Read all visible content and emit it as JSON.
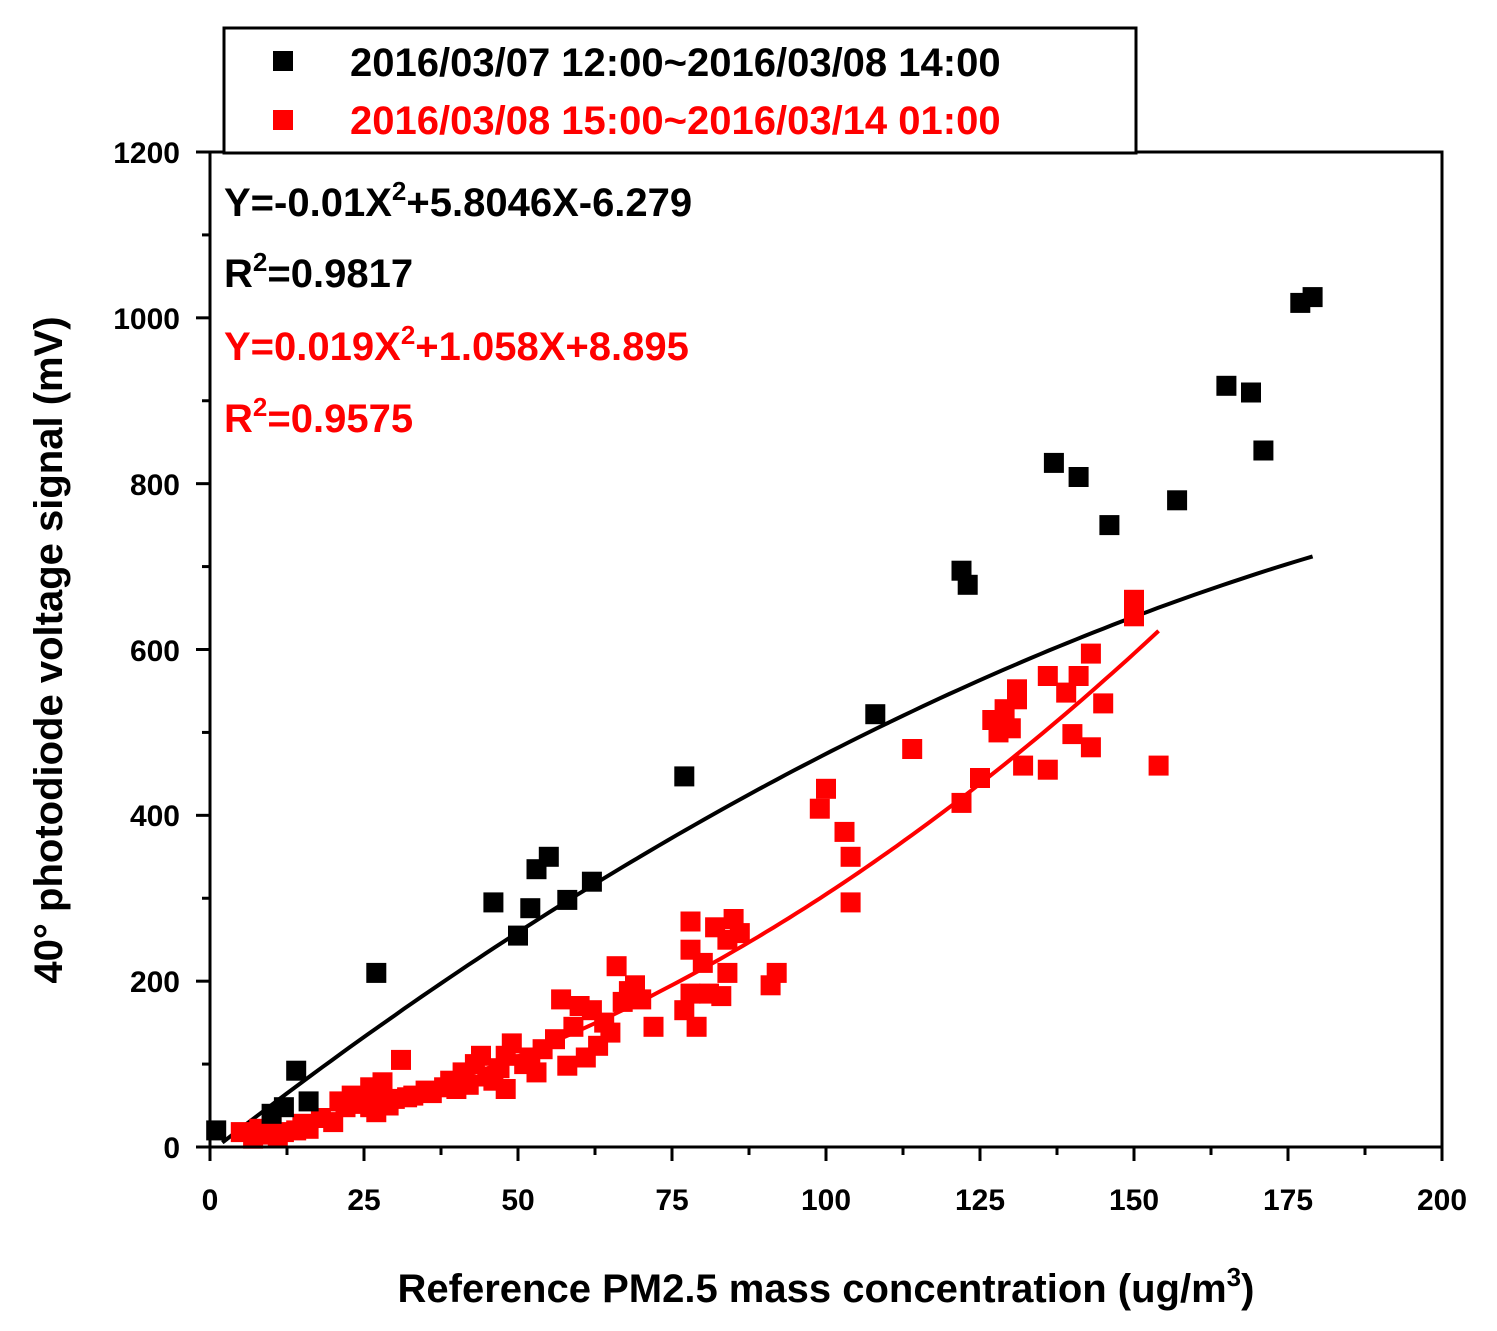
{
  "chart_data": {
    "type": "scatter",
    "xlabel": "Reference PM2.5 mass concentration (ug/m",
    "xlabel_sup": "3",
    "xlabel_end": ")",
    "ylabel": "40° photodiode voltage signal (mV)",
    "xlim": [
      0,
      200
    ],
    "ylim": [
      0,
      1200
    ],
    "xticks": [
      "0",
      "25",
      "50",
      "75",
      "100",
      "125",
      "150",
      "175",
      "200"
    ],
    "yticks": [
      "0",
      "200",
      "400",
      "600",
      "800",
      "1000",
      "1200"
    ],
    "legend_position": "top",
    "series": [
      {
        "name": "2016/03/07 12:00~2016/03/08 14:00",
        "color": "#000000",
        "marker": "square",
        "points": [
          [
            1,
            20
          ],
          [
            10,
            40
          ],
          [
            12,
            48
          ],
          [
            14,
            92
          ],
          [
            16,
            55
          ],
          [
            27,
            210
          ],
          [
            46,
            295
          ],
          [
            50,
            255
          ],
          [
            52,
            288
          ],
          [
            53,
            335
          ],
          [
            55,
            350
          ],
          [
            58,
            298
          ],
          [
            62,
            320
          ],
          [
            77,
            447
          ],
          [
            108,
            522
          ],
          [
            122,
            695
          ],
          [
            123,
            678
          ],
          [
            137,
            825
          ],
          [
            141,
            808
          ],
          [
            146,
            750
          ],
          [
            157,
            780
          ],
          [
            165,
            918
          ],
          [
            169,
            910
          ],
          [
            171,
            840
          ],
          [
            177,
            1018
          ],
          [
            179,
            1025
          ]
        ],
        "fit": {
          "equation": "Y=-0.01X",
          "equation_sup": "2",
          "equation_tail": "+5.8046X-6.279",
          "r2_label": "R",
          "r2_sup": "2",
          "r2_value": "=0.9817",
          "coeffs": [
            -0.01,
            5.8046,
            -6.279
          ],
          "x_range": [
            2,
            179
          ]
        }
      },
      {
        "name": "2016/03/08 15:00~2016/03/14 01:00",
        "color": "#ff0000",
        "marker": "square",
        "points": [
          [
            5,
            18
          ],
          [
            7,
            10
          ],
          [
            8,
            22
          ],
          [
            9,
            15
          ],
          [
            10,
            25
          ],
          [
            11,
            12
          ],
          [
            12,
            18
          ],
          [
            14,
            20
          ],
          [
            15,
            28
          ],
          [
            16,
            22
          ],
          [
            18,
            35
          ],
          [
            20,
            30
          ],
          [
            21,
            55
          ],
          [
            22,
            48
          ],
          [
            23,
            62
          ],
          [
            24,
            52
          ],
          [
            25,
            58
          ],
          [
            26,
            72
          ],
          [
            26,
            48
          ],
          [
            27,
            42
          ],
          [
            28,
            65
          ],
          [
            28,
            78
          ],
          [
            29,
            50
          ],
          [
            30,
            58
          ],
          [
            31,
            105
          ],
          [
            32,
            60
          ],
          [
            33,
            62
          ],
          [
            35,
            68
          ],
          [
            36,
            65
          ],
          [
            38,
            72
          ],
          [
            39,
            80
          ],
          [
            40,
            70
          ],
          [
            41,
            90
          ],
          [
            42,
            75
          ],
          [
            43,
            100
          ],
          [
            44,
            110
          ],
          [
            45,
            85
          ],
          [
            46,
            80
          ],
          [
            47,
            95
          ],
          [
            48,
            70
          ],
          [
            48,
            110
          ],
          [
            49,
            125
          ],
          [
            51,
            100
          ],
          [
            52,
            108
          ],
          [
            53,
            90
          ],
          [
            54,
            118
          ],
          [
            56,
            130
          ],
          [
            57,
            178
          ],
          [
            58,
            98
          ],
          [
            59,
            145
          ],
          [
            60,
            170
          ],
          [
            61,
            108
          ],
          [
            62,
            165
          ],
          [
            63,
            122
          ],
          [
            64,
            150
          ],
          [
            65,
            138
          ],
          [
            66,
            218
          ],
          [
            67,
            175
          ],
          [
            68,
            188
          ],
          [
            69,
            195
          ],
          [
            70,
            178
          ],
          [
            72,
            145
          ],
          [
            77,
            165
          ],
          [
            78,
            272
          ],
          [
            78,
            238
          ],
          [
            78,
            185
          ],
          [
            79,
            145
          ],
          [
            80,
            222
          ],
          [
            81,
            185
          ],
          [
            82,
            265
          ],
          [
            83,
            182
          ],
          [
            84,
            250
          ],
          [
            84,
            210
          ],
          [
            85,
            275
          ],
          [
            86,
            258
          ],
          [
            91,
            195
          ],
          [
            92,
            210
          ],
          [
            99,
            408
          ],
          [
            100,
            432
          ],
          [
            103,
            380
          ],
          [
            104,
            350
          ],
          [
            104,
            295
          ],
          [
            114,
            480
          ],
          [
            122,
            415
          ],
          [
            125,
            445
          ],
          [
            127,
            515
          ],
          [
            128,
            500
          ],
          [
            129,
            528
          ],
          [
            130,
            505
          ],
          [
            131,
            552
          ],
          [
            131,
            540
          ],
          [
            132,
            460
          ],
          [
            136,
            568
          ],
          [
            136,
            455
          ],
          [
            139,
            548
          ],
          [
            140,
            498
          ],
          [
            141,
            568
          ],
          [
            143,
            595
          ],
          [
            143,
            482
          ],
          [
            145,
            535
          ],
          [
            150,
            660
          ],
          [
            150,
            640
          ],
          [
            154,
            460
          ]
        ],
        "fit": {
          "equation": "Y=0.019X",
          "equation_sup": "2",
          "equation_tail": "+1.058X+8.895",
          "r2_label": "R",
          "r2_sup": "2",
          "r2_value": "=0.9575",
          "coeffs": [
            0.019,
            1.058,
            8.895
          ],
          "x_range": [
            4,
            154
          ]
        }
      }
    ]
  }
}
